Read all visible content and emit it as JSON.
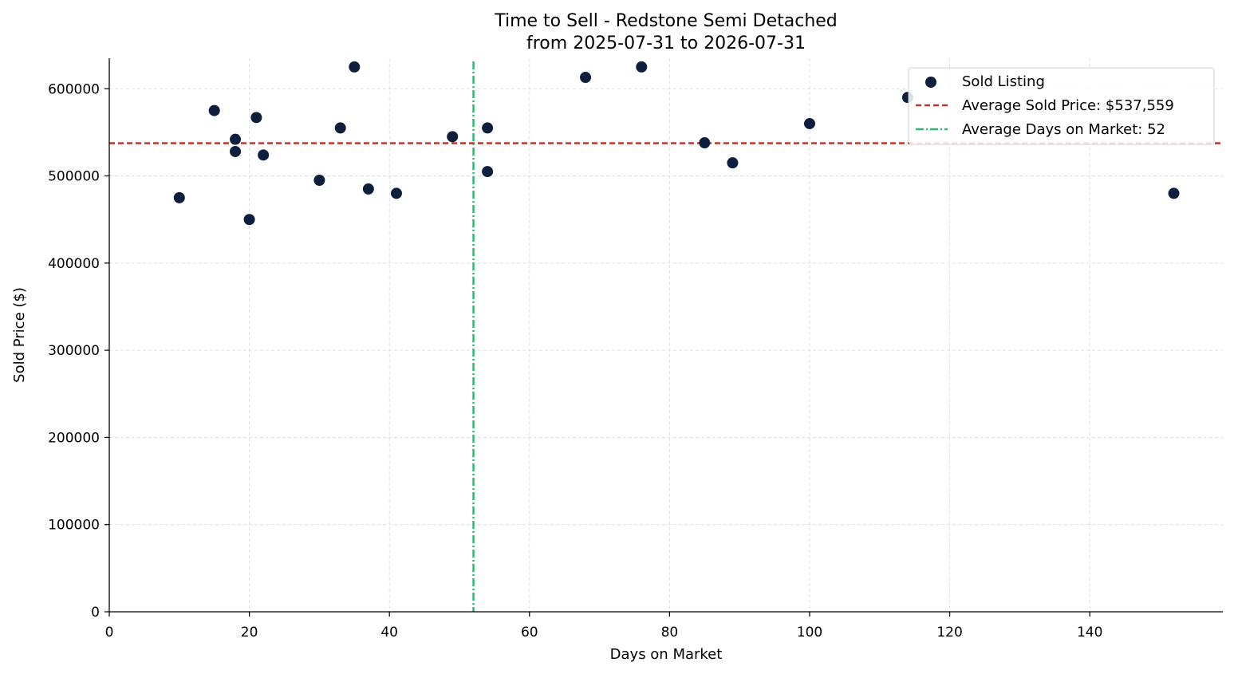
{
  "chart_data": {
    "type": "scatter",
    "title_line1": "Time to Sell - Redstone Semi Detached",
    "title_line2": "from 2025-07-31 to 2026-07-31",
    "xlabel": "Days on Market",
    "ylabel": "Sold Price ($)",
    "xlim": [
      0,
      159
    ],
    "ylim": [
      0,
      635000
    ],
    "x_ticks": [
      0,
      20,
      40,
      60,
      80,
      100,
      120,
      140
    ],
    "x_tick_labels": [
      "0",
      "20",
      "40",
      "60",
      "80",
      "100",
      "120",
      "140"
    ],
    "y_ticks": [
      0,
      100000,
      200000,
      300000,
      400000,
      500000,
      600000
    ],
    "y_tick_labels": [
      "0",
      "100000",
      "200000",
      "300000",
      "400000",
      "500000",
      "600000"
    ],
    "grid": true,
    "legend_position": "top-right",
    "legend": {
      "sold_label": "Sold Listing",
      "avg_price_label": "Average Sold Price: $537,559",
      "avg_days_label": "Average Days on Market: 52"
    },
    "avg_price": 537559,
    "avg_days": 52,
    "colors": {
      "points": "#0d1f3c",
      "avg_price_line": "#b5382a",
      "avg_days_line": "#2eb872",
      "grid": "#d9d9d9"
    },
    "series": [
      {
        "name": "Sold Listing",
        "points": [
          {
            "x": 10,
            "y": 475000
          },
          {
            "x": 15,
            "y": 575000
          },
          {
            "x": 18,
            "y": 542000
          },
          {
            "x": 18,
            "y": 528000
          },
          {
            "x": 20,
            "y": 450000
          },
          {
            "x": 21,
            "y": 567000
          },
          {
            "x": 22,
            "y": 524000
          },
          {
            "x": 30,
            "y": 495000
          },
          {
            "x": 33,
            "y": 555000
          },
          {
            "x": 35,
            "y": 625000
          },
          {
            "x": 37,
            "y": 485000
          },
          {
            "x": 41,
            "y": 480000
          },
          {
            "x": 49,
            "y": 545000
          },
          {
            "x": 54,
            "y": 555000
          },
          {
            "x": 54,
            "y": 505000
          },
          {
            "x": 68,
            "y": 613000
          },
          {
            "x": 76,
            "y": 625000
          },
          {
            "x": 85,
            "y": 538000
          },
          {
            "x": 89,
            "y": 515000
          },
          {
            "x": 100,
            "y": 560000
          },
          {
            "x": 114,
            "y": 590000
          },
          {
            "x": 152,
            "y": 480000
          }
        ]
      }
    ]
  }
}
